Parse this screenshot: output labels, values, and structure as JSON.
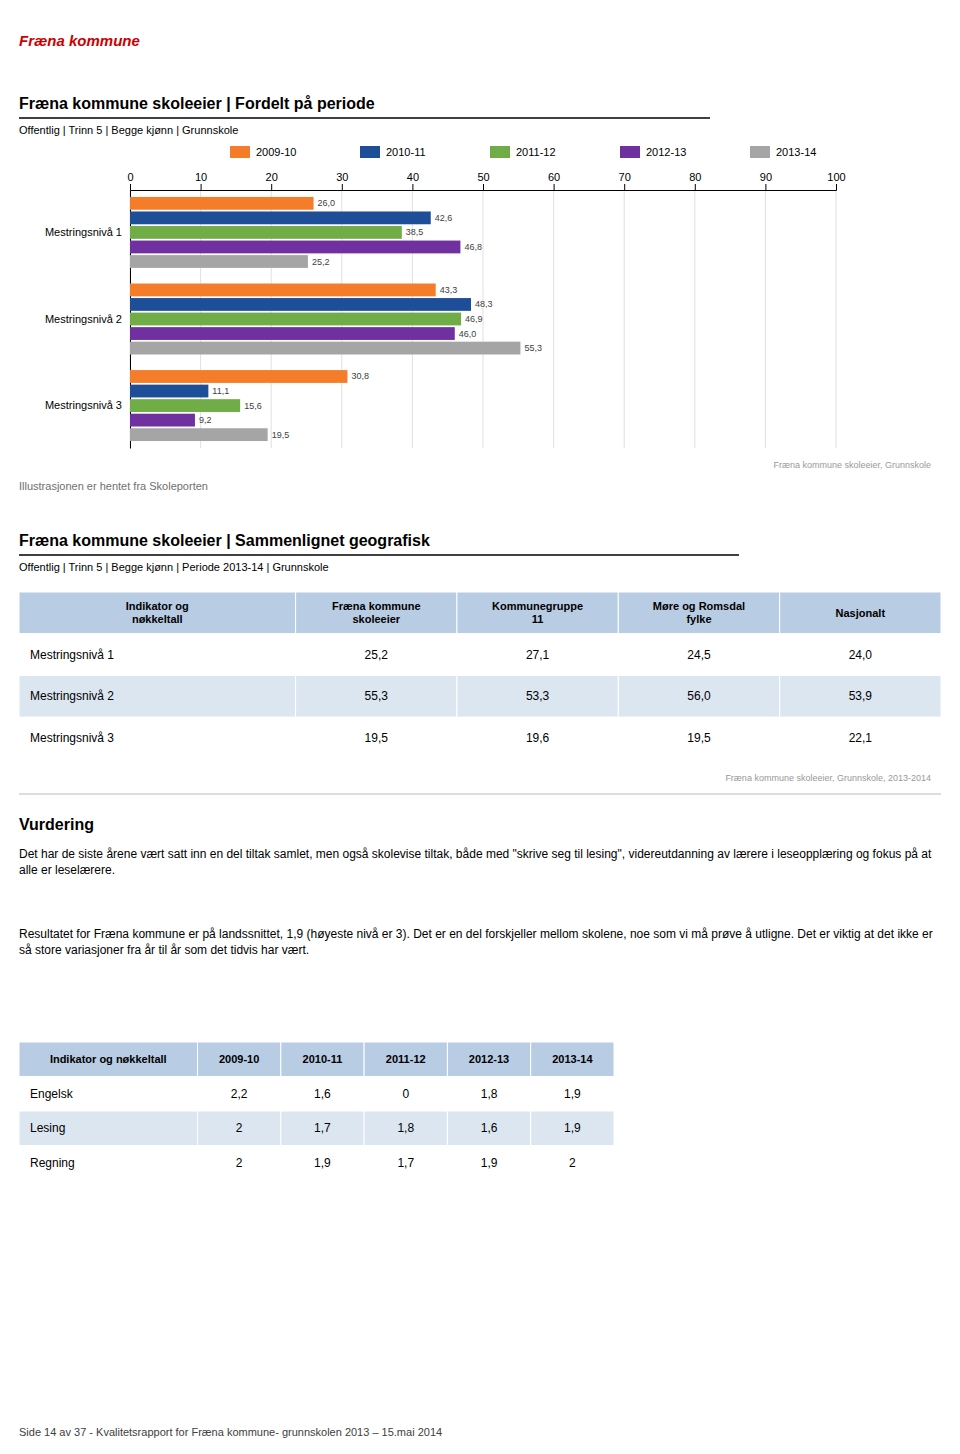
{
  "header": {
    "text": "Fræna kommune",
    "color": "#cc0000"
  },
  "chart_data": {
    "type": "bar",
    "orientation": "horizontal",
    "title": "Fræna kommune skoleeier | Fordelt på periode",
    "subtitle": "Offentlig | Trinn 5 | Begge kjønn | Grunnskole",
    "categories": [
      "Mestringsnivå 1",
      "Mestringsnivå 2",
      "Mestringsnivå 3"
    ],
    "series": [
      {
        "name": "2009-10",
        "color": "#f57c28",
        "values": [
          26.0,
          43.3,
          30.8
        ],
        "value_labels": [
          "26,0",
          "43,3",
          "30,8"
        ]
      },
      {
        "name": "2010-11",
        "color": "#1f4e99",
        "values": [
          42.6,
          48.3,
          11.1
        ],
        "value_labels": [
          "42,6",
          "48,3",
          "11,1"
        ]
      },
      {
        "name": "2011-12",
        "color": "#70ad47",
        "values": [
          38.5,
          46.9,
          15.6
        ],
        "value_labels": [
          "38,5",
          "46,9",
          "15,6"
        ]
      },
      {
        "name": "2012-13",
        "color": "#7030a0",
        "values": [
          46.8,
          46.0,
          9.2
        ],
        "value_labels": [
          "46,8",
          "46,0",
          "9,2"
        ]
      },
      {
        "name": "2013-14",
        "color": "#a5a5a5",
        "values": [
          25.2,
          55.3,
          19.5
        ],
        "value_labels": [
          "25,2",
          "55,3",
          "19,5"
        ]
      }
    ],
    "xlim": [
      0,
      100
    ],
    "xticks": [
      0,
      10,
      20,
      30,
      40,
      50,
      60,
      70,
      80,
      90,
      100
    ],
    "grid": true,
    "legend": "top",
    "data_labels": true,
    "annotations": [
      "Fræna kommune skoleeier, Grunnskole",
      "Illustrasjonen er hentet fra Skoleporten"
    ]
  },
  "tables": [
    {
      "title": "Fræna kommune skoleeier | Sammenlignet geografisk",
      "subtitle": "Offentlig | Trinn 5 | Begge kjønn | Periode 2013-14 | Grunnskole",
      "columns": [
        "Indikator og\nnøkkeltall",
        "Fræna kommune\nskoleeier",
        "Kommunegruppe\n11",
        "Møre og Romsdal\nfylke",
        "Nasjonalt"
      ],
      "rows": [
        [
          "Mestringsnivå 1",
          "25,2",
          "27,1",
          "24,5",
          "24,0"
        ],
        [
          "Mestringsnivå 2",
          "55,3",
          "53,3",
          "56,0",
          "53,9"
        ],
        [
          "Mestringsnivå 3",
          "19,5",
          "19,6",
          "19,5",
          "22,1"
        ]
      ],
      "note": "Fræna kommune skoleeier, Grunnskole, 2013-2014"
    },
    {
      "columns": [
        "Indikator og nøkkeltall",
        "2009-10",
        "2010-11",
        "2011-12",
        "2012-13",
        "2013-14"
      ],
      "rows": [
        [
          "Engelsk",
          "2,2",
          "1,6",
          "0",
          "1,8",
          "1,9"
        ],
        [
          "Lesing",
          "2",
          "1,7",
          "1,8",
          "1,6",
          "1,9"
        ],
        [
          "Regning",
          "2",
          "1,9",
          "1,7",
          "1,9",
          "2"
        ]
      ]
    }
  ],
  "assessment": {
    "title": "Vurdering",
    "paragraphs": [
      "Det har de siste årene vært satt inn en del tiltak samlet, men også skolevise tiltak, både med \"skrive seg til lesing\", videreutdanning av lærere i leseopplæring og fokus på at alle er leselærere.",
      "Resultatet for Fræna kommune er på landssnittet, 1,9 (høyeste nivå er 3). Det er en del forskjeller mellom skolene, noe som vi må prøve å utligne. Det er viktig at det ikke er så store variasjoner fra år til år som det tidvis har vært."
    ]
  },
  "footer": "Side 14 av 37 - Kvalitetsrapport for Fræna kommune- grunnskolen 2013 – 15.mai 2014"
}
